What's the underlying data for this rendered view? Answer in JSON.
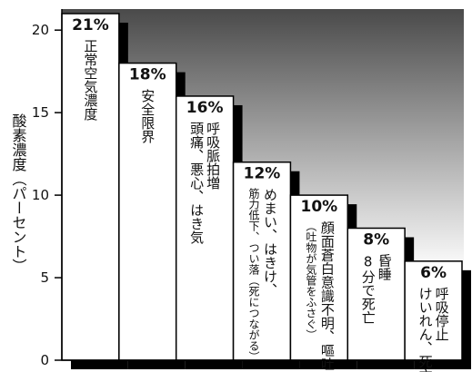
{
  "chart_data": {
    "type": "bar",
    "y_label": "酸素濃度（パーセント）",
    "categories": [
      [
        "正常空気濃度"
      ],
      [
        "安全限界"
      ],
      [
        "呼吸脈拍増",
        "頭痛、悪心、はき気"
      ],
      [
        "めまい、はきけ、",
        "筋力低下、つい落（死につながる）"
      ],
      [
        "顔面蒼白意識不明、嘔吐",
        "（吐物が気管をふさぐ）"
      ],
      [
        "昏睡",
        "8分で死亡"
      ],
      [
        "呼吸停止",
        "けいれん、死亡"
      ]
    ],
    "values": [
      21,
      18,
      16,
      12,
      10,
      8,
      6
    ],
    "value_labels": [
      "21%",
      "18%",
      "16%",
      "12%",
      "10%",
      "8%",
      "6%"
    ],
    "color": "#ffffff",
    "ylim": [
      0,
      21
    ],
    "yticks": [
      0,
      5,
      10,
      15,
      20
    ]
  }
}
